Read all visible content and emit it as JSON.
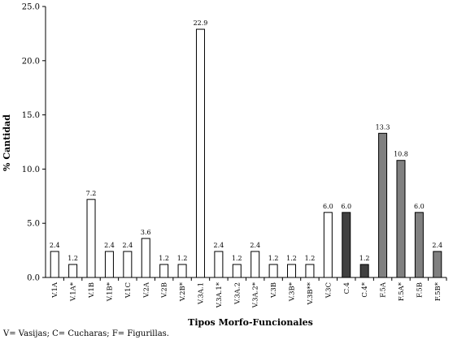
{
  "chart_data": {
    "type": "bar",
    "xlabel": "Tipos Morfo-Funcionales",
    "ylabel": "% Cantidad",
    "ylim": [
      0,
      25
    ],
    "yticks": [
      "0.0",
      "5.0",
      "10.0",
      "15.0",
      "20.0",
      "25.0"
    ],
    "grid": false,
    "categories": [
      "V.1A",
      "V.1A*",
      "V.1B",
      "V.1B*",
      "V.1C",
      "V.2A",
      "V.2B",
      "V.2B*",
      "V.3A.1",
      "V.3A.1*",
      "V.3A.2",
      "V.3A.2*",
      "V.3B",
      "V.3B*",
      "V.3B**",
      "V.3C",
      "C.4",
      "C.4*",
      "F.5A",
      "F.5A*",
      "F.5B",
      "F.5B*"
    ],
    "values": [
      2.4,
      1.2,
      7.2,
      2.4,
      2.4,
      3.6,
      1.2,
      1.2,
      22.9,
      2.4,
      1.2,
      2.4,
      1.2,
      1.2,
      1.2,
      6.0,
      6.0,
      1.2,
      13.3,
      10.8,
      6.0,
      2.4
    ],
    "value_labels": [
      "2.4",
      "1.2",
      "7.2",
      "2.4",
      "2.4",
      "3.6",
      "1.2",
      "1.2",
      "22.9",
      "2.4",
      "1.2",
      "2.4",
      "1.2",
      "1.2",
      "1.2",
      "6.0",
      "6.0",
      "1.2",
      "13.3",
      "10.8",
      "6.0",
      "2.4"
    ],
    "groups": [
      "V",
      "V",
      "V",
      "V",
      "V",
      "V",
      "V",
      "V",
      "V",
      "V",
      "V",
      "V",
      "V",
      "V",
      "V",
      "V",
      "C",
      "C",
      "F",
      "F",
      "F",
      "F"
    ],
    "group_colors": {
      "V": "#ffffff",
      "C": "#404040",
      "F": "#808080"
    }
  },
  "footnote": "V= Vasijas; C= Cucharas; F= Figurillas."
}
